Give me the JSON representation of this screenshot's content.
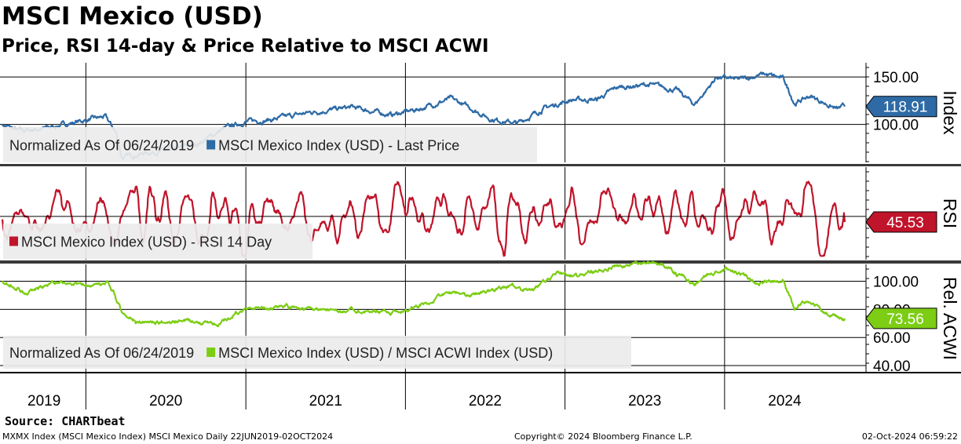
{
  "header": {
    "title": "MSCI Mexico (USD)",
    "subtitle": "Price, RSI 14-day & Price Relative to MSCI ACWI"
  },
  "footer": {
    "source": "Source: CHARTbeat",
    "left": "MXMX Index (MSCI Mexico Index) MSCI Mexico  Daily 22JUN2019-02OCT2024",
    "center": "Copyright© 2024 Bloomberg Finance L.P.",
    "right": "02-Oct-2024 06:59:22"
  },
  "colors": {
    "price": "#2e6ba6",
    "rsi": "#c0142a",
    "relative": "#7ccd14",
    "legend_bg": "#ebebeb",
    "price_tag": "#2e6ba6",
    "rsi_tag": "#c0142a",
    "rel_tag": "#84d400"
  },
  "chart_data": [
    {
      "type": "line",
      "axis_title": "Index",
      "x_range": [
        "2019-06-24",
        "2024-10-02"
      ],
      "yticks": [
        100,
        150
      ],
      "ytick_labels": [
        "100.00",
        "150.00"
      ],
      "ylim": [
        60,
        165
      ],
      "grid": true,
      "legend": [
        "Normalized As Of 06/24/2019",
        "MSCI Mexico Index (USD) - Last Price"
      ],
      "last_value": 118.91,
      "last_label": "118.91",
      "series": [
        {
          "name": "MSCI Mexico Index (USD) - Last Price",
          "points": [
            [
              "2019-06-24",
              100
            ],
            [
              "2019-08-01",
              93
            ],
            [
              "2019-10-01",
              96
            ],
            [
              "2019-12-15",
              103
            ],
            [
              "2020-02-15",
              108
            ],
            [
              "2020-03-10",
              92
            ],
            [
              "2020-03-24",
              65
            ],
            [
              "2020-05-15",
              70
            ],
            [
              "2020-07-15",
              73
            ],
            [
              "2020-09-15",
              80
            ],
            [
              "2020-11-10",
              95
            ],
            [
              "2020-12-31",
              103
            ],
            [
              "2021-03-01",
              105
            ],
            [
              "2021-06-01",
              113
            ],
            [
              "2021-09-01",
              118
            ],
            [
              "2021-11-30",
              110
            ],
            [
              "2022-01-31",
              116
            ],
            [
              "2022-04-15",
              127
            ],
            [
              "2022-06-01",
              117
            ],
            [
              "2022-07-15",
              106
            ],
            [
              "2022-09-15",
              101
            ],
            [
              "2022-11-15",
              117
            ],
            [
              "2023-01-15",
              126
            ],
            [
              "2023-03-15",
              126
            ],
            [
              "2023-05-01",
              139
            ],
            [
              "2023-07-15",
              142
            ],
            [
              "2023-09-15",
              136
            ],
            [
              "2023-10-25",
              121
            ],
            [
              "2023-12-15",
              150
            ],
            [
              "2024-02-01",
              147
            ],
            [
              "2024-04-01",
              153
            ],
            [
              "2024-05-15",
              148
            ],
            [
              "2024-06-10",
              122
            ],
            [
              "2024-07-15",
              130
            ],
            [
              "2024-09-15",
              116
            ],
            [
              "2024-10-02",
              118.91
            ]
          ]
        }
      ]
    },
    {
      "type": "line",
      "axis_title": "RSI",
      "x_range": [
        "2019-06-24",
        "2024-10-02"
      ],
      "ylim": [
        15,
        90
      ],
      "grid": true,
      "legend": [
        "MSCI Mexico Index (USD) - RSI 14 Day"
      ],
      "last_value": 45.53,
      "last_label": "45.53",
      "series": [
        {
          "name": "MSCI Mexico Index (USD) - RSI 14 Day",
          "mean": 50,
          "amplitude": 22,
          "last_value": 45.53
        }
      ]
    },
    {
      "type": "line",
      "axis_title": "Rel. ACWI",
      "x_range": [
        "2019-06-24",
        "2024-10-02"
      ],
      "yticks": [
        40,
        60,
        80,
        100
      ],
      "ytick_labels": [
        "40.00",
        "60.00",
        "80.00",
        "100.00"
      ],
      "ylim": [
        35,
        112
      ],
      "grid": true,
      "legend": [
        "Normalized As Of 06/24/2019",
        "MSCI Mexico Index (USD) / MSCI ACWI Index (USD)"
      ],
      "last_value": 73.56,
      "last_label": "73.56",
      "series": [
        {
          "name": "MSCI Mexico Index (USD) / MSCI ACWI Index (USD)",
          "points": [
            [
              "2019-06-24",
              100
            ],
            [
              "2019-08-15",
              92
            ],
            [
              "2019-11-01",
              100
            ],
            [
              "2020-01-15",
              96
            ],
            [
              "2020-02-20",
              98
            ],
            [
              "2020-03-05",
              92
            ],
            [
              "2020-03-24",
              78
            ],
            [
              "2020-05-01",
              70
            ],
            [
              "2020-08-01",
              72
            ],
            [
              "2020-11-01",
              70
            ],
            [
              "2021-01-01",
              80
            ],
            [
              "2021-04-01",
              82
            ],
            [
              "2021-07-01",
              79
            ],
            [
              "2021-10-01",
              80
            ],
            [
              "2021-12-01",
              77
            ],
            [
              "2022-02-01",
              83
            ],
            [
              "2022-04-15",
              92
            ],
            [
              "2022-06-01",
              90
            ],
            [
              "2022-09-01",
              97
            ],
            [
              "2022-10-15",
              93
            ],
            [
              "2022-12-15",
              106
            ],
            [
              "2023-02-01",
              104
            ],
            [
              "2023-04-15",
              110
            ],
            [
              "2023-06-15",
              113
            ],
            [
              "2023-08-15",
              111
            ],
            [
              "2023-10-25",
              98
            ],
            [
              "2023-12-01",
              106
            ],
            [
              "2024-01-15",
              109
            ],
            [
              "2024-03-15",
              99
            ],
            [
              "2024-05-15",
              101
            ],
            [
              "2024-06-10",
              82
            ],
            [
              "2024-07-15",
              85
            ],
            [
              "2024-09-01",
              76
            ],
            [
              "2024-10-02",
              73.56
            ]
          ]
        }
      ]
    }
  ],
  "x_axis": {
    "year_labels": [
      "2019",
      "2020",
      "2021",
      "2022",
      "2023",
      "2024"
    ],
    "year_starts": [
      "2020-01-01",
      "2021-01-01",
      "2022-01-01",
      "2023-01-01",
      "2024-01-01"
    ]
  }
}
